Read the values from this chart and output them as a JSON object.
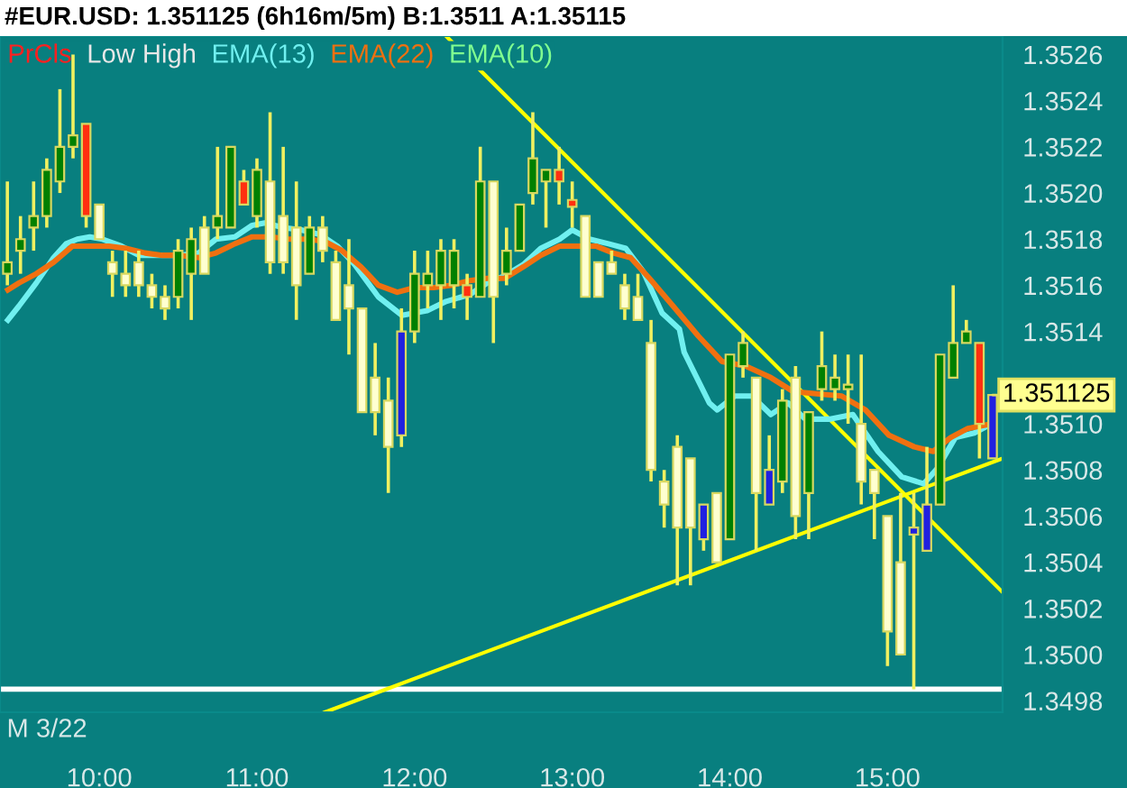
{
  "chart_data": {
    "type": "candlestick",
    "title": "#EUR.USD: 1.351125 (6h16m/5m) B:1.3511 A:1.35115",
    "x": [
      9.4167,
      9.5,
      9.5833,
      9.6667,
      9.75,
      9.8333,
      9.9167,
      10.0,
      10.0833,
      10.1667,
      10.25,
      10.3333,
      10.4167,
      10.5,
      10.5833,
      10.6667,
      10.75,
      10.8333,
      10.9167,
      11.0,
      11.0833,
      11.1667,
      11.25,
      11.3333,
      11.4167,
      11.5,
      11.5833,
      11.6667,
      11.75,
      11.8333,
      11.9167,
      12.0,
      12.0833,
      12.1667,
      12.25,
      12.3333,
      12.4167,
      12.5,
      12.5833,
      12.6667,
      12.75,
      12.8333,
      12.9167,
      13.0,
      13.0833,
      13.1667,
      13.25,
      13.3333,
      13.4167,
      13.5,
      13.5833,
      13.6667,
      13.75,
      13.8333,
      13.9167,
      14.0,
      14.0833,
      14.1667,
      14.25,
      14.3333,
      14.4167,
      14.5,
      14.5833,
      14.6667,
      14.75,
      14.8333,
      14.9167,
      15.0,
      15.0833,
      15.1667,
      15.25,
      15.3333,
      15.4167,
      15.5,
      15.5833,
      15.6667
    ],
    "ohlc": [
      [
        1.35165,
        1.35205,
        1.3516,
        1.3517
      ],
      [
        1.35175,
        1.3519,
        1.35165,
        1.3518
      ],
      [
        1.35185,
        1.35205,
        1.35175,
        1.3519
      ],
      [
        1.3519,
        1.35215,
        1.35185,
        1.3521
      ],
      [
        1.35205,
        1.35245,
        1.352,
        1.3522
      ],
      [
        1.3522,
        1.3526,
        1.35215,
        1.35225
      ],
      [
        1.3523,
        1.3523,
        1.35185,
        1.3519
      ],
      [
        1.35195,
        1.35195,
        1.3518,
        1.3518
      ],
      [
        1.3517,
        1.35175,
        1.35155,
        1.35165
      ],
      [
        1.35165,
        1.35175,
        1.35155,
        1.3516
      ],
      [
        1.3517,
        1.35175,
        1.35155,
        1.3516
      ],
      [
        1.3516,
        1.35165,
        1.3515,
        1.35155
      ],
      [
        1.35155,
        1.3516,
        1.35145,
        1.3515
      ],
      [
        1.35155,
        1.3518,
        1.3515,
        1.35175
      ],
      [
        1.35165,
        1.35185,
        1.35145,
        1.3518
      ],
      [
        1.35185,
        1.3519,
        1.35165,
        1.35165
      ],
      [
        1.35185,
        1.3522,
        1.3518,
        1.3519
      ],
      [
        1.35185,
        1.3522,
        1.35185,
        1.3522
      ],
      [
        1.35205,
        1.3521,
        1.35195,
        1.35195
      ],
      [
        1.3519,
        1.35215,
        1.35185,
        1.3521
      ],
      [
        1.35205,
        1.35235,
        1.35165,
        1.3517
      ],
      [
        1.3519,
        1.3522,
        1.35165,
        1.3517
      ],
      [
        1.35185,
        1.35205,
        1.35145,
        1.3516
      ],
      [
        1.35165,
        1.3519,
        1.35165,
        1.35185
      ],
      [
        1.35185,
        1.3519,
        1.3517,
        1.35175
      ],
      [
        1.3517,
        1.35175,
        1.35145,
        1.35145
      ],
      [
        1.3516,
        1.3518,
        1.3513,
        1.3515
      ],
      [
        1.3515,
        1.3515,
        1.35105,
        1.35105
      ],
      [
        1.3512,
        1.35135,
        1.35095,
        1.35105
      ],
      [
        1.3511,
        1.3512,
        1.3507,
        1.3509
      ],
      [
        1.35095,
        1.3515,
        1.3509,
        1.3514
      ],
      [
        1.3514,
        1.35175,
        1.35135,
        1.35165
      ],
      [
        1.3516,
        1.35175,
        1.3515,
        1.35165
      ],
      [
        1.3516,
        1.3518,
        1.35145,
        1.35175
      ],
      [
        1.3516,
        1.3518,
        1.3515,
        1.35175
      ],
      [
        1.3516,
        1.35165,
        1.35145,
        1.35155
      ],
      [
        1.35155,
        1.3522,
        1.35155,
        1.35205
      ],
      [
        1.35205,
        1.35205,
        1.35135,
        1.35155
      ],
      [
        1.35165,
        1.35185,
        1.3516,
        1.35175
      ],
      [
        1.35175,
        1.35195,
        1.35175,
        1.35195
      ],
      [
        1.352,
        1.35235,
        1.35195,
        1.35215
      ],
      [
        1.35205,
        1.3521,
        1.35185,
        1.3521
      ],
      [
        1.3521,
        1.3522,
        1.35195,
        1.35205
      ],
      [
        1.35197,
        1.35205,
        1.35185,
        1.35194
      ],
      [
        1.3519,
        1.3519,
        1.35155,
        1.35155
      ],
      [
        1.3517,
        1.3517,
        1.35155,
        1.35155
      ],
      [
        1.3517,
        1.35175,
        1.35165,
        1.35165
      ],
      [
        1.3516,
        1.35165,
        1.35145,
        1.3515
      ],
      [
        1.35155,
        1.35165,
        1.35145,
        1.35145
      ],
      [
        1.35135,
        1.35145,
        1.35075,
        1.3508
      ],
      [
        1.35075,
        1.3508,
        1.35055,
        1.35065
      ],
      [
        1.3509,
        1.35095,
        1.3503,
        1.35055
      ],
      [
        1.35085,
        1.35085,
        1.3503,
        1.35055
      ],
      [
        1.3505,
        1.35065,
        1.35045,
        1.35065
      ],
      [
        1.3507,
        1.3507,
        1.3504,
        1.3504
      ],
      [
        1.3505,
        1.3513,
        1.3505,
        1.3513
      ],
      [
        1.35125,
        1.3514,
        1.3512,
        1.35135
      ],
      [
        1.3512,
        1.3512,
        1.35045,
        1.3507
      ],
      [
        1.35065,
        1.35095,
        1.35065,
        1.3508
      ],
      [
        1.35075,
        1.35115,
        1.3507,
        1.3511
      ],
      [
        1.3512,
        1.35125,
        1.3505,
        1.3506
      ],
      [
        1.3507,
        1.35105,
        1.3505,
        1.35105
      ],
      [
        1.35115,
        1.3514,
        1.3511,
        1.35125
      ],
      [
        1.35115,
        1.3513,
        1.3511,
        1.3512
      ],
      [
        1.35115,
        1.3513,
        1.351,
        1.35117
      ],
      [
        1.351,
        1.3513,
        1.35065,
        1.35075
      ],
      [
        1.3508,
        1.3508,
        1.3505,
        1.3507
      ],
      [
        1.3506,
        1.3506,
        1.34995,
        1.3501
      ],
      [
        1.3504,
        1.3507,
        1.35,
        1.35
      ],
      [
        1.35052,
        1.3507,
        1.34985,
        1.35055
      ],
      [
        1.35045,
        1.3509,
        1.35045,
        1.35065
      ],
      [
        1.35065,
        1.3513,
        1.35065,
        1.3513
      ],
      [
        1.3512,
        1.3516,
        1.3512,
        1.35135
      ],
      [
        1.35135,
        1.35145,
        1.35135,
        1.3514
      ],
      [
        1.35135,
        1.35135,
        1.35085,
        1.351
      ],
      [
        1.35085,
        1.351125,
        1.35085,
        1.351125
      ]
    ],
    "colors": [
      "#008000",
      "#008000",
      "#008000",
      "#008000",
      "#008000",
      "#008000",
      "#ff3010",
      "#ffffd0",
      "#ffffd0",
      "#ffffd0",
      "#ffffd0",
      "#ffffd0",
      "#ffffd0",
      "#008000",
      "#008000",
      "#ffffd0",
      "#008000",
      "#008000",
      "#ff3010",
      "#008000",
      "#ffffd0",
      "#ffffd0",
      "#ffffd0",
      "#008000",
      "#ffffd0",
      "#ffffd0",
      "#ffffd0",
      "#ffffd0",
      "#ffffd0",
      "#ffffd0",
      "#2020e0",
      "#008000",
      "#008000",
      "#008000",
      "#008000",
      "#ff3010",
      "#008000",
      "#ffffd0",
      "#008000",
      "#008000",
      "#008000",
      "#008000",
      "#ff3010",
      "#ff3010",
      "#ffffd0",
      "#ffffd0",
      "#ffffd0",
      "#ffffd0",
      "#ffffd0",
      "#ffffd0",
      "#ffffd0",
      "#ffffd0",
      "#ffffd0",
      "#2020e0",
      "#ffffd0",
      "#008000",
      "#008000",
      "#ffffd0",
      "#2020e0",
      "#008000",
      "#ffffd0",
      "#008000",
      "#008000",
      "#008000",
      "#008000",
      "#ffffd0",
      "#ffffd0",
      "#ffffd0",
      "#ffffd0",
      "#2020e0",
      "#2020e0",
      "#008000",
      "#008000",
      "#008000",
      "#ff3010",
      "#2020e0"
    ],
    "series": [
      {
        "type": "line",
        "name": "EMA(13)",
        "color": "#70f0f0",
        "x": [
          9.42,
          9.49,
          9.6,
          9.71,
          9.79,
          9.86,
          9.94,
          10.02,
          10.14,
          10.25,
          10.4,
          10.51,
          10.63,
          10.74,
          10.86,
          10.97,
          11.05,
          11.17,
          11.28,
          11.4,
          11.51,
          11.62,
          11.77,
          11.92,
          12.08,
          12.2,
          12.35,
          12.46,
          12.57,
          12.69,
          12.8,
          12.92,
          13.0,
          13.11,
          13.23,
          13.34,
          13.45,
          13.57,
          13.68,
          13.71,
          13.87,
          13.92,
          14.03,
          14.14,
          14.26,
          14.37,
          14.48,
          14.63,
          14.78,
          14.94,
          15.09,
          15.23,
          15.32,
          15.43,
          15.55,
          15.66
        ],
        "values": [
          1.35145,
          1.35151,
          1.35161,
          1.35172,
          1.35178,
          1.3518,
          1.35181,
          1.3518,
          1.35177,
          1.35173,
          1.35173,
          1.35173,
          1.35174,
          1.3518,
          1.35181,
          1.35186,
          1.35187,
          1.35185,
          1.35184,
          1.35182,
          1.35177,
          1.35169,
          1.35155,
          1.35147,
          1.35149,
          1.35153,
          1.35156,
          1.35161,
          1.35164,
          1.35169,
          1.35176,
          1.3518,
          1.35184,
          1.3518,
          1.35178,
          1.35176,
          1.35166,
          1.35148,
          1.35141,
          1.35131,
          1.35109,
          1.35106,
          1.35112,
          1.35112,
          1.35104,
          1.35109,
          1.35102,
          1.35102,
          1.35104,
          1.35088,
          1.35077,
          1.35074,
          1.35081,
          1.35094,
          1.35096,
          1.351
        ]
      },
      {
        "type": "line",
        "name": "EMA(22)",
        "color": "#f07010",
        "x": [
          9.42,
          9.49,
          9.6,
          9.71,
          9.83,
          9.94,
          10.06,
          10.17,
          10.29,
          10.4,
          10.51,
          10.63,
          10.74,
          10.86,
          10.97,
          11.09,
          11.2,
          11.32,
          11.43,
          11.54,
          11.66,
          11.77,
          11.89,
          12.0,
          12.12,
          12.23,
          12.35,
          12.46,
          12.57,
          12.69,
          12.8,
          12.92,
          13.03,
          13.15,
          13.26,
          13.37,
          13.49,
          13.64,
          13.8,
          13.95,
          14.1,
          14.26,
          14.4,
          14.55,
          14.71,
          14.86,
          15.01,
          15.17,
          15.29,
          15.4,
          15.51,
          15.66
        ],
        "values": [
          1.35158,
          1.35161,
          1.35165,
          1.3517,
          1.35177,
          1.35177,
          1.35177,
          1.35176,
          1.35174,
          1.35173,
          1.35173,
          1.35172,
          1.35174,
          1.35178,
          1.35181,
          1.35181,
          1.3518,
          1.3518,
          1.35179,
          1.35175,
          1.35168,
          1.3516,
          1.35157,
          1.35159,
          1.35159,
          1.3516,
          1.35162,
          1.35163,
          1.35163,
          1.35168,
          1.35173,
          1.35177,
          1.35177,
          1.35177,
          1.35174,
          1.35172,
          1.35163,
          1.35151,
          1.35138,
          1.35127,
          1.35125,
          1.3512,
          1.35114,
          1.35113,
          1.35112,
          1.35106,
          1.35095,
          1.3509,
          1.35088,
          1.35094,
          1.35098,
          1.351
        ]
      },
      {
        "type": "line",
        "color": "#ffff00",
        "x": [
          12.2,
          15.73
        ],
        "values": [
          1.35268,
          1.35027
        ]
      },
      {
        "type": "line",
        "color": "#ffff00",
        "x": [
          11.43,
          15.73
        ],
        "values": [
          1.34975,
          1.35085
        ]
      }
    ],
    "ref_lines": [
      {
        "axis": "y",
        "value": 1.34985,
        "color": "#ffffff"
      }
    ],
    "annotations": [
      "PrCls",
      "Low High",
      "EMA(10)",
      "M 3/22",
      {
        "text": "1.351125",
        "x": 15.6667,
        "y": 1.351125
      }
    ],
    "legend": "top left",
    "xlim": [
      9.37,
      15.73
    ],
    "xticks": [
      {
        "value": 10,
        "label": "10:00"
      },
      {
        "value": 11,
        "label": "11:00"
      },
      {
        "value": 12,
        "label": "12:00"
      },
      {
        "value": 13,
        "label": "13:00"
      },
      {
        "value": 14,
        "label": "14:00"
      },
      {
        "value": 15,
        "label": "15:00"
      }
    ],
    "ylim": [
      1.34975,
      1.35268
    ],
    "yticks": [
      1.3498,
      {
        "value": 1.35,
        "label": "1.3500"
      },
      1.3502,
      1.3504,
      1.3506,
      1.3508,
      {
        "value": 1.351,
        "label": "1.3510"
      },
      1.3514,
      1.3516,
      1.3518,
      {
        "value": 1.352,
        "label": "1.3520"
      },
      1.3522,
      1.3524,
      1.3526
    ],
    "grid": false
  }
}
